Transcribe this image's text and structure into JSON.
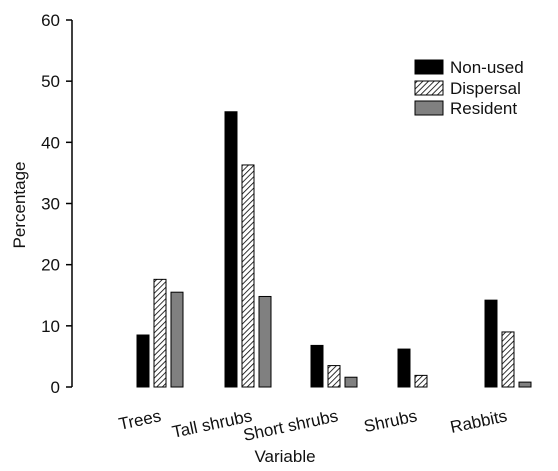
{
  "chart_data": {
    "type": "bar",
    "xlabel": "Variable",
    "ylabel": "Percentage",
    "ylim": [
      0,
      60
    ],
    "yticks": [
      0,
      10,
      20,
      30,
      40,
      50,
      60
    ],
    "grid": false,
    "legend_position": "top-right",
    "categories": [
      "Trees",
      "Tall shrubs",
      "Short shrubs",
      "Shrubs",
      "Rabbits"
    ],
    "series": [
      {
        "name": "Non-used",
        "values": [
          8.5,
          45,
          6.8,
          6.2,
          14.2
        ],
        "color": "#000000",
        "pattern": "solid"
      },
      {
        "name": "Dispersal",
        "values": [
          17.6,
          36.3,
          3.5,
          1.9,
          9.0
        ],
        "color": "#ffffff",
        "pattern": "hatched"
      },
      {
        "name": "Resident",
        "values": [
          15.5,
          14.8,
          1.6,
          0,
          0.8
        ],
        "color": "#808080",
        "pattern": "solid"
      }
    ]
  }
}
